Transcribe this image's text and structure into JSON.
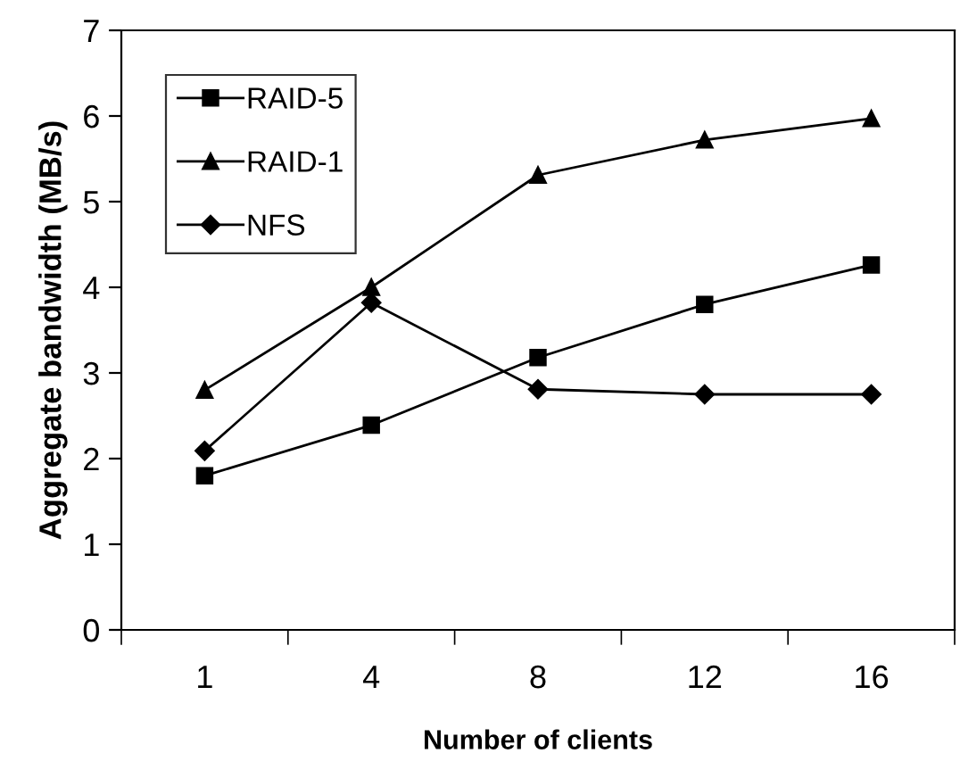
{
  "chart_data": {
    "type": "line",
    "xlabel": "Number of clients",
    "ylabel": "Aggregate bandwidth (MB/s)",
    "categories": [
      "1",
      "4",
      "8",
      "12",
      "16"
    ],
    "series": [
      {
        "name": "RAID-5",
        "color": "#000000",
        "marker": "square",
        "values": [
          1.8,
          2.39,
          3.18,
          3.8,
          4.26
        ]
      },
      {
        "name": "RAID-1",
        "color": "#000000",
        "marker": "triangle",
        "values": [
          2.8,
          4.0,
          5.31,
          5.72,
          5.97
        ]
      },
      {
        "name": "NFS",
        "color": "#000000",
        "marker": "diamond",
        "values": [
          2.09,
          3.82,
          2.81,
          2.75,
          2.75
        ]
      }
    ],
    "ylim": [
      0,
      7
    ],
    "yticks": [
      0,
      1,
      2,
      3,
      4,
      5,
      6,
      7
    ],
    "grid": false,
    "legend": "top left",
    "line_style": "solid"
  }
}
